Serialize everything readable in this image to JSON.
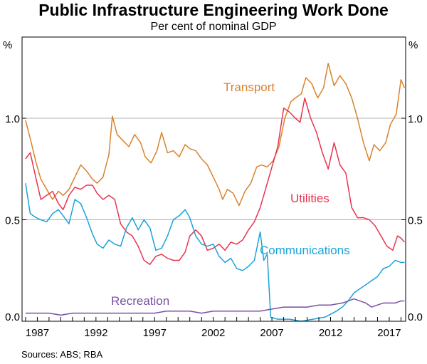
{
  "chart_data": {
    "type": "line",
    "title": "Public Infrastructure Engineering Work Done",
    "subtitle": "Per cent of nominal GDP",
    "y_unit_label": "%",
    "ylim": [
      0,
      1.4
    ],
    "y_ticks": [
      0.0,
      0.5,
      1.0
    ],
    "y_tick_labels": [
      "0.0",
      "0.5",
      "1.0"
    ],
    "xlim": [
      1985.7,
      2018.4
    ],
    "x_ticks": [
      1987,
      1992,
      1997,
      2002,
      2007,
      2012,
      2017
    ],
    "x_tick_labels": [
      "1987",
      "1992",
      "1997",
      "2002",
      "2007",
      "2012",
      "2017"
    ],
    "gridlines": [
      0.5,
      1.0
    ],
    "source": "Sources: ABS; RBA",
    "series": [
      {
        "name": "Transport",
        "label": "Transport",
        "color": "#d9822b",
        "points": [
          [
            1986.0,
            0.99
          ],
          [
            1986.4,
            0.9
          ],
          [
            1986.9,
            0.78
          ],
          [
            1987.3,
            0.7
          ],
          [
            1987.8,
            0.65
          ],
          [
            1988.3,
            0.6
          ],
          [
            1988.8,
            0.64
          ],
          [
            1989.2,
            0.62
          ],
          [
            1989.7,
            0.65
          ],
          [
            1990.2,
            0.71
          ],
          [
            1990.7,
            0.77
          ],
          [
            1991.2,
            0.74
          ],
          [
            1991.7,
            0.7
          ],
          [
            1992.1,
            0.68
          ],
          [
            1992.6,
            0.71
          ],
          [
            1993.1,
            0.82
          ],
          [
            1993.4,
            1.01
          ],
          [
            1993.8,
            0.92
          ],
          [
            1994.3,
            0.89
          ],
          [
            1994.8,
            0.86
          ],
          [
            1995.3,
            0.92
          ],
          [
            1995.8,
            0.88
          ],
          [
            1996.2,
            0.81
          ],
          [
            1996.7,
            0.78
          ],
          [
            1997.2,
            0.84
          ],
          [
            1997.6,
            0.93
          ],
          [
            1998.1,
            0.83
          ],
          [
            1998.6,
            0.84
          ],
          [
            1999.1,
            0.81
          ],
          [
            1999.6,
            0.87
          ],
          [
            2000.0,
            0.85
          ],
          [
            2000.5,
            0.84
          ],
          [
            2001.0,
            0.8
          ],
          [
            2001.5,
            0.77
          ],
          [
            2002.0,
            0.71
          ],
          [
            2002.5,
            0.65
          ],
          [
            2002.8,
            0.6
          ],
          [
            2003.2,
            0.65
          ],
          [
            2003.7,
            0.63
          ],
          [
            2004.2,
            0.57
          ],
          [
            2004.7,
            0.64
          ],
          [
            2005.2,
            0.68
          ],
          [
            2005.7,
            0.76
          ],
          [
            2006.1,
            0.77
          ],
          [
            2006.6,
            0.76
          ],
          [
            2007.1,
            0.79
          ],
          [
            2007.6,
            0.86
          ],
          [
            2008.1,
            1.0
          ],
          [
            2008.6,
            1.08
          ],
          [
            2009.0,
            1.1
          ],
          [
            2009.5,
            1.12
          ],
          [
            2009.9,
            1.2
          ],
          [
            2010.4,
            1.17
          ],
          [
            2010.9,
            1.1
          ],
          [
            2011.4,
            1.15
          ],
          [
            2011.8,
            1.27
          ],
          [
            2012.3,
            1.16
          ],
          [
            2012.8,
            1.21
          ],
          [
            2013.3,
            1.17
          ],
          [
            2013.8,
            1.1
          ],
          [
            2014.3,
            1.0
          ],
          [
            2014.8,
            0.88
          ],
          [
            2015.3,
            0.79
          ],
          [
            2015.7,
            0.87
          ],
          [
            2016.2,
            0.84
          ],
          [
            2016.7,
            0.88
          ],
          [
            2017.1,
            0.97
          ],
          [
            2017.6,
            1.02
          ],
          [
            2018.0,
            1.19
          ],
          [
            2018.3,
            1.15
          ]
        ]
      },
      {
        "name": "Utilities",
        "label": "Utilities",
        "color": "#e8344e",
        "points": [
          [
            1986.0,
            0.8
          ],
          [
            1986.4,
            0.83
          ],
          [
            1986.9,
            0.7
          ],
          [
            1987.3,
            0.6
          ],
          [
            1987.8,
            0.62
          ],
          [
            1988.3,
            0.64
          ],
          [
            1988.8,
            0.58
          ],
          [
            1989.2,
            0.55
          ],
          [
            1989.7,
            0.62
          ],
          [
            1990.2,
            0.66
          ],
          [
            1990.7,
            0.65
          ],
          [
            1991.2,
            0.67
          ],
          [
            1991.7,
            0.67
          ],
          [
            1992.1,
            0.63
          ],
          [
            1992.6,
            0.6
          ],
          [
            1993.1,
            0.62
          ],
          [
            1993.6,
            0.6
          ],
          [
            1994.1,
            0.48
          ],
          [
            1994.6,
            0.44
          ],
          [
            1995.1,
            0.42
          ],
          [
            1995.6,
            0.37
          ],
          [
            1996.1,
            0.3
          ],
          [
            1996.6,
            0.28
          ],
          [
            1997.1,
            0.32
          ],
          [
            1997.6,
            0.33
          ],
          [
            1998.1,
            0.31
          ],
          [
            1998.6,
            0.3
          ],
          [
            1999.1,
            0.3
          ],
          [
            1999.6,
            0.34
          ],
          [
            2000.0,
            0.42
          ],
          [
            2000.5,
            0.45
          ],
          [
            2001.0,
            0.42
          ],
          [
            2001.5,
            0.35
          ],
          [
            2002.0,
            0.36
          ],
          [
            2002.5,
            0.38
          ],
          [
            2003.0,
            0.35
          ],
          [
            2003.5,
            0.39
          ],
          [
            2004.0,
            0.38
          ],
          [
            2004.5,
            0.4
          ],
          [
            2005.0,
            0.45
          ],
          [
            2005.5,
            0.49
          ],
          [
            2006.0,
            0.56
          ],
          [
            2006.5,
            0.66
          ],
          [
            2007.0,
            0.76
          ],
          [
            2007.5,
            0.86
          ],
          [
            2008.0,
            1.05
          ],
          [
            2008.5,
            1.03
          ],
          [
            2009.0,
            1.0
          ],
          [
            2009.4,
            0.98
          ],
          [
            2009.8,
            1.1
          ],
          [
            2010.3,
            1.0
          ],
          [
            2010.8,
            0.93
          ],
          [
            2011.3,
            0.83
          ],
          [
            2011.8,
            0.75
          ],
          [
            2012.3,
            0.88
          ],
          [
            2012.8,
            0.77
          ],
          [
            2013.3,
            0.73
          ],
          [
            2013.8,
            0.56
          ],
          [
            2014.3,
            0.51
          ],
          [
            2014.8,
            0.51
          ],
          [
            2015.3,
            0.5
          ],
          [
            2015.8,
            0.47
          ],
          [
            2016.3,
            0.42
          ],
          [
            2016.8,
            0.37
          ],
          [
            2017.3,
            0.35
          ],
          [
            2017.7,
            0.42
          ],
          [
            2018.0,
            0.41
          ],
          [
            2018.3,
            0.39
          ]
        ]
      },
      {
        "name": "Communications",
        "label": "Communications",
        "color": "#1aa3d9",
        "points": [
          [
            1986.0,
            0.68
          ],
          [
            1986.4,
            0.53
          ],
          [
            1986.9,
            0.51
          ],
          [
            1987.3,
            0.5
          ],
          [
            1987.8,
            0.49
          ],
          [
            1988.3,
            0.53
          ],
          [
            1988.8,
            0.55
          ],
          [
            1989.2,
            0.52
          ],
          [
            1989.7,
            0.48
          ],
          [
            1990.2,
            0.6
          ],
          [
            1990.7,
            0.58
          ],
          [
            1991.2,
            0.51
          ],
          [
            1991.7,
            0.43
          ],
          [
            1992.1,
            0.38
          ],
          [
            1992.6,
            0.36
          ],
          [
            1993.1,
            0.4
          ],
          [
            1993.6,
            0.38
          ],
          [
            1994.1,
            0.37
          ],
          [
            1994.6,
            0.46
          ],
          [
            1995.1,
            0.51
          ],
          [
            1995.6,
            0.45
          ],
          [
            1996.1,
            0.5
          ],
          [
            1996.6,
            0.46
          ],
          [
            1997.1,
            0.35
          ],
          [
            1997.6,
            0.36
          ],
          [
            1998.1,
            0.42
          ],
          [
            1998.6,
            0.5
          ],
          [
            1999.1,
            0.52
          ],
          [
            1999.6,
            0.55
          ],
          [
            2000.0,
            0.51
          ],
          [
            2000.5,
            0.42
          ],
          [
            2001.0,
            0.38
          ],
          [
            2001.5,
            0.37
          ],
          [
            2002.0,
            0.38
          ],
          [
            2002.5,
            0.32
          ],
          [
            2003.0,
            0.29
          ],
          [
            2003.5,
            0.31
          ],
          [
            2004.0,
            0.26
          ],
          [
            2004.5,
            0.25
          ],
          [
            2005.0,
            0.27
          ],
          [
            2005.5,
            0.3
          ],
          [
            2006.0,
            0.44
          ],
          [
            2006.3,
            0.3
          ],
          [
            2006.6,
            0.33
          ],
          [
            2006.9,
            0.02
          ],
          [
            2007.5,
            0.01
          ],
          [
            2008.5,
            0.01
          ],
          [
            2009.5,
            0.0
          ],
          [
            2010.5,
            0.01
          ],
          [
            2011.5,
            0.02
          ],
          [
            2012.5,
            0.05
          ],
          [
            2013.0,
            0.07
          ],
          [
            2013.5,
            0.1
          ],
          [
            2014.0,
            0.14
          ],
          [
            2014.5,
            0.16
          ],
          [
            2015.0,
            0.18
          ],
          [
            2015.5,
            0.2
          ],
          [
            2016.0,
            0.22
          ],
          [
            2016.5,
            0.26
          ],
          [
            2017.0,
            0.27
          ],
          [
            2017.5,
            0.3
          ],
          [
            2018.0,
            0.29
          ],
          [
            2018.3,
            0.29
          ]
        ]
      },
      {
        "name": "Recreation",
        "label": "Recreation",
        "color": "#7a4fa3",
        "points": [
          [
            1986.0,
            0.04
          ],
          [
            1987.0,
            0.04
          ],
          [
            1988.0,
            0.04
          ],
          [
            1989.0,
            0.03
          ],
          [
            1990.0,
            0.04
          ],
          [
            1991.0,
            0.04
          ],
          [
            1992.0,
            0.04
          ],
          [
            1993.0,
            0.04
          ],
          [
            1994.0,
            0.04
          ],
          [
            1995.0,
            0.04
          ],
          [
            1996.0,
            0.04
          ],
          [
            1997.0,
            0.04
          ],
          [
            1998.0,
            0.05
          ],
          [
            1999.0,
            0.05
          ],
          [
            2000.0,
            0.05
          ],
          [
            2001.0,
            0.04
          ],
          [
            2002.0,
            0.05
          ],
          [
            2003.0,
            0.05
          ],
          [
            2004.0,
            0.05
          ],
          [
            2005.0,
            0.05
          ],
          [
            2006.0,
            0.05
          ],
          [
            2007.0,
            0.06
          ],
          [
            2008.0,
            0.07
          ],
          [
            2009.0,
            0.07
          ],
          [
            2010.0,
            0.07
          ],
          [
            2011.0,
            0.08
          ],
          [
            2012.0,
            0.08
          ],
          [
            2013.0,
            0.09
          ],
          [
            2014.0,
            0.11
          ],
          [
            2015.0,
            0.09
          ],
          [
            2015.5,
            0.07
          ],
          [
            2016.0,
            0.08
          ],
          [
            2016.5,
            0.09
          ],
          [
            2017.0,
            0.09
          ],
          [
            2017.5,
            0.09
          ],
          [
            2018.0,
            0.1
          ],
          [
            2018.3,
            0.1
          ]
        ]
      }
    ]
  }
}
